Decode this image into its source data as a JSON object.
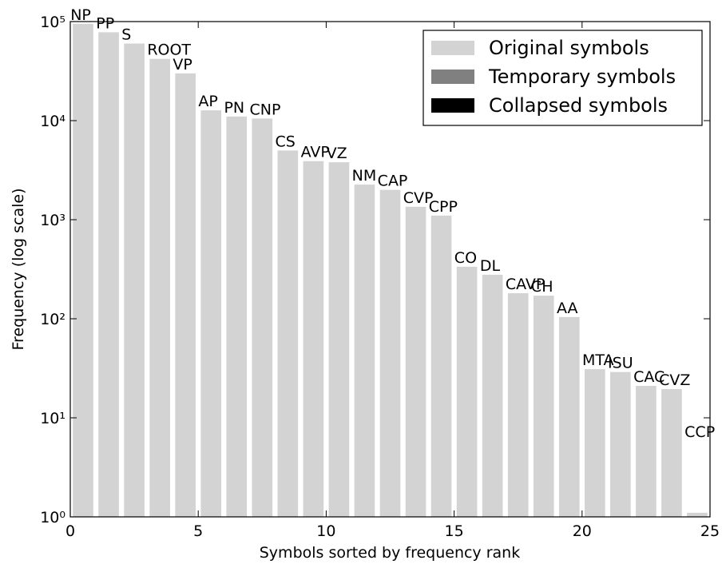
{
  "chart_data": {
    "type": "bar",
    "xlabel": "Symbols sorted by frequency rank",
    "ylabel": "Frequency (log scale)",
    "categories": [
      "NP",
      "PP",
      "S",
      "ROOT",
      "VP",
      "AP",
      "PN",
      "CNP",
      "CS",
      "AVP",
      "VZ",
      "NM",
      "CAP",
      "CVP",
      "CPP",
      "CO",
      "DL",
      "CAVP",
      "CH",
      "AA",
      "MTA",
      "ISU",
      "CAC",
      "CVZ",
      "CCP"
    ],
    "x": [
      0,
      1,
      2,
      3,
      4,
      5,
      6,
      7,
      8,
      9,
      10,
      11,
      12,
      13,
      14,
      15,
      16,
      17,
      18,
      19,
      20,
      21,
      22,
      23,
      24
    ],
    "values": [
      95000,
      78000,
      60000,
      42000,
      30000,
      12700,
      11000,
      10500,
      5000,
      3900,
      3800,
      2260,
      2000,
      1350,
      1100,
      335,
      278,
      181,
      171,
      104,
      31,
      29,
      21,
      19.5,
      1.1
    ],
    "color": "#d3d3d3",
    "series": [
      {
        "name": "Original symbols",
        "color": "#d3d3d3"
      },
      {
        "name": "Temporary symbols",
        "color": "#808080"
      },
      {
        "name": "Collapsed symbols",
        "color": "#000000"
      }
    ],
    "legend": "upper right",
    "xlim": [
      0,
      25
    ],
    "xticks": [
      0,
      5,
      10,
      15,
      20,
      25
    ],
    "ylim": [
      1,
      100000
    ],
    "ylog": true,
    "yticks": [
      {
        "value": 1,
        "label": "10⁰"
      },
      {
        "value": 10,
        "label": "10¹"
      },
      {
        "value": 100,
        "label": "10²"
      },
      {
        "value": 1000,
        "label": "10³"
      },
      {
        "value": 10000,
        "label": "10⁴"
      },
      {
        "value": 100000,
        "label": "10⁵"
      }
    ]
  }
}
